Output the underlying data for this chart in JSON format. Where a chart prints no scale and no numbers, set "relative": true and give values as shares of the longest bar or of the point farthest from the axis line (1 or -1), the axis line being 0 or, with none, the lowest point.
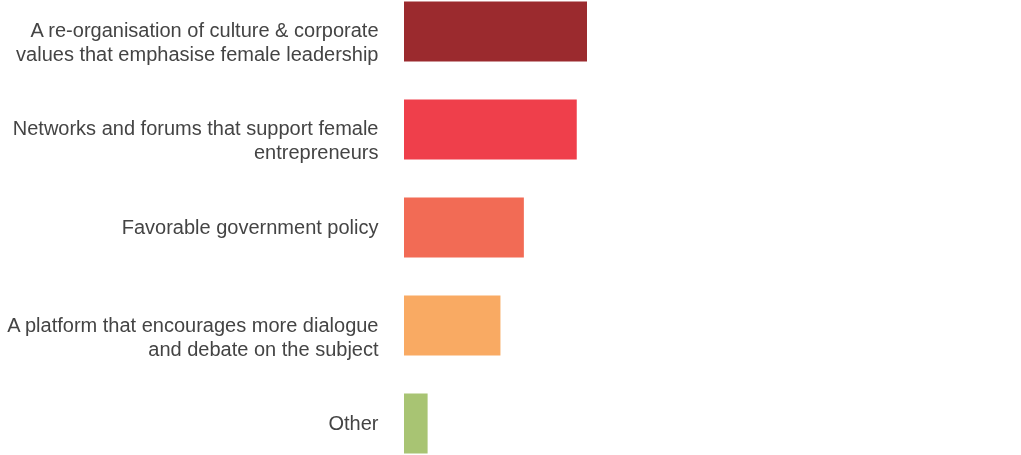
{
  "chart_data": {
    "type": "bar",
    "orientation": "horizontal",
    "relative": true,
    "categories": [
      "A re-organisation of culture & corporate values that emphasise female leadership",
      "Networks and forums that support female entrepreneurs",
      "Favorable government policy",
      "A platform that encourages more dialogue and debate on the subject",
      "Other"
    ],
    "values": [
      1,
      0.944,
      0.655,
      0.527,
      0.129
    ],
    "colors": [
      "#9b2a2e",
      "#ef3f4b",
      "#f26b55",
      "#f9aa63",
      "#a8c473"
    ],
    "grid": false,
    "legend": false
  }
}
